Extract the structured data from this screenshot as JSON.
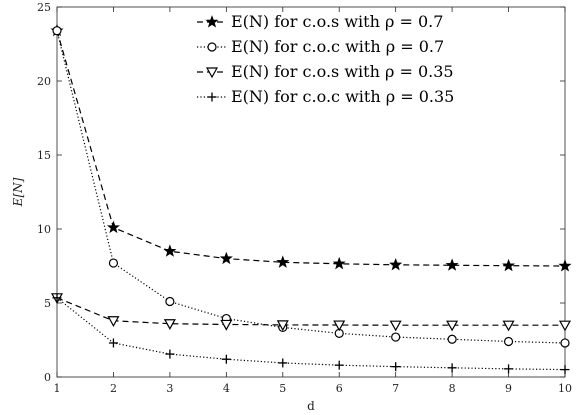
{
  "chart_data": {
    "type": "line",
    "title": "",
    "xlabel": "d",
    "ylabel": "E[N]",
    "xlim": [
      1,
      10
    ],
    "ylim": [
      0,
      25
    ],
    "xticks": [
      1,
      2,
      3,
      4,
      5,
      6,
      7,
      8,
      9,
      10
    ],
    "yticks": [
      0,
      5,
      10,
      15,
      20,
      25
    ],
    "grid": false,
    "legend_position": "top-right",
    "x": [
      1,
      2,
      3,
      4,
      5,
      6,
      7,
      8,
      9,
      10
    ],
    "series": [
      {
        "name": "E(N) for c.o.s with ρ = 0.7",
        "marker": "star",
        "line_style": "dashed",
        "values": [
          23.4,
          10.1,
          8.5,
          8.0,
          7.75,
          7.65,
          7.58,
          7.55,
          7.52,
          7.5
        ]
      },
      {
        "name": "E(N) for c.o.c with ρ = 0.7",
        "marker": "circle",
        "line_style": "dotted",
        "values": [
          23.4,
          7.7,
          5.1,
          3.95,
          3.35,
          2.95,
          2.7,
          2.55,
          2.4,
          2.3
        ]
      },
      {
        "name": "E(N) for c.o.s with ρ = 0.35",
        "marker": "triangle-down",
        "line_style": "dashed",
        "values": [
          5.35,
          3.8,
          3.6,
          3.55,
          3.52,
          3.51,
          3.5,
          3.5,
          3.5,
          3.5
        ]
      },
      {
        "name": "E(N) for c.o.c with ρ = 0.35",
        "marker": "plus",
        "line_style": "dotted",
        "values": [
          5.35,
          2.3,
          1.55,
          1.2,
          0.95,
          0.8,
          0.7,
          0.62,
          0.55,
          0.5
        ]
      }
    ]
  }
}
